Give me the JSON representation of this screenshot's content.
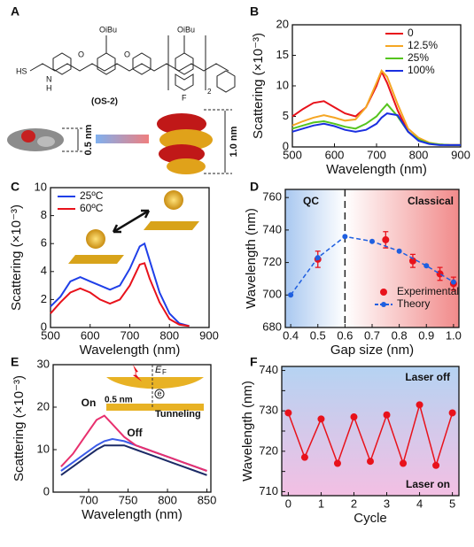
{
  "figure": {
    "panels": [
      "A",
      "B",
      "C",
      "D",
      "E",
      "F"
    ],
    "molecule": {
      "thiol": "HS",
      "nitrogen": "N",
      "hydrogen": "H",
      "oxygen": "O",
      "side_group": "OiBu",
      "name": "(OS-2)",
      "fluorine": "F",
      "repeat": "2",
      "short_height": "0.5 nm",
      "tall_height": "1.0 nm"
    },
    "inset_e": {
      "fermi": "E",
      "fermi_sub": "F",
      "electron": "e",
      "gap": "0.5 nm",
      "process": "Tunneling"
    }
  },
  "chart_data": [
    {
      "type": "line",
      "xlabel": "Wavelength (nm)",
      "ylabel": "Scattering (×10⁻³)",
      "x": [
        500,
        525,
        550,
        575,
        600,
        625,
        650,
        675,
        700,
        712,
        725,
        750,
        775,
        800,
        825,
        850,
        875,
        900
      ],
      "series": [
        {
          "name": "0",
          "color": "#e8121b",
          "values": [
            5,
            6.2,
            7.2,
            7.5,
            6.5,
            5.5,
            5,
            6.5,
            10,
            12.3,
            10.5,
            6,
            2.5,
            1.2,
            0.6,
            0.4,
            0.3,
            0.3
          ]
        },
        {
          "name": "12.5%",
          "color": "#f5a623",
          "values": [
            3.5,
            4.2,
            4.8,
            5.2,
            4.8,
            4.3,
            4.5,
            6.5,
            10.5,
            12.5,
            11.5,
            7,
            3,
            1.5,
            0.7,
            0.4,
            0.3,
            0.3
          ]
        },
        {
          "name": "25%",
          "color": "#55c41e",
          "values": [
            3,
            3.5,
            4,
            4.2,
            3.8,
            3.3,
            3,
            3.8,
            5,
            6,
            7,
            5,
            2.5,
            1.2,
            0.6,
            0.4,
            0.3,
            0.3
          ]
        },
        {
          "name": "100%",
          "color": "#1a2fe0",
          "values": [
            2.5,
            3,
            3.5,
            3.8,
            3.4,
            2.8,
            2.5,
            2.8,
            3.8,
            4.8,
            5.5,
            5.2,
            2.5,
            1,
            0.5,
            0.3,
            0.3,
            0.3
          ]
        }
      ],
      "xlim": [
        500,
        900
      ],
      "xticks": [
        500,
        600,
        700,
        800,
        900
      ],
      "ylim": [
        0,
        20
      ],
      "yticks": [
        0,
        5,
        10,
        15,
        20
      ],
      "legend": "upper right"
    },
    {
      "type": "line",
      "xlabel": "Wavelength (nm)",
      "ylabel": "Scattering (×10⁻³)",
      "x": [
        500,
        525,
        550,
        575,
        600,
        625,
        650,
        675,
        700,
        725,
        737,
        750,
        775,
        800,
        825,
        850
      ],
      "series": [
        {
          "name": "25ºC",
          "color": "#1f3fe8",
          "values": [
            1.5,
            2.2,
            3.3,
            3.6,
            3.3,
            3,
            2.7,
            3,
            4.2,
            5.8,
            6,
            4.8,
            2.5,
            1,
            0.3,
            0.1
          ]
        },
        {
          "name": "60ºC",
          "color": "#e8121b",
          "values": [
            1,
            1.8,
            2.5,
            2.8,
            2.5,
            2,
            1.7,
            2,
            3,
            4.5,
            4.6,
            3.5,
            1.8,
            0.6,
            0.2,
            0.1
          ]
        }
      ],
      "xlim": [
        500,
        900
      ],
      "xticks": [
        500,
        600,
        700,
        800,
        900
      ],
      "ylim": [
        0,
        10
      ],
      "yticks": [
        0,
        2,
        4,
        6,
        8,
        10
      ],
      "legend": "upper left"
    },
    {
      "type": "line",
      "xlabel": "Gap size (nm)",
      "ylabel": "Wavelength (nm)",
      "divider": 0.6,
      "annotations": [
        "QC",
        "Classical"
      ],
      "series": [
        {
          "name": "Experimental",
          "color": "#e8121b",
          "style": "markers-errors",
          "x": [
            0.5,
            0.75,
            0.85,
            0.95,
            1.0
          ],
          "values": [
            722,
            734,
            721,
            713,
            707
          ],
          "errors": [
            5,
            5,
            4,
            4,
            4
          ]
        },
        {
          "name": "Theory",
          "color": "#1f5fe0",
          "style": "dashed-markers",
          "x": [
            0.4,
            0.5,
            0.6,
            0.7,
            0.8,
            0.9,
            1.0
          ],
          "values": [
            700,
            723,
            736,
            733,
            727,
            718,
            708
          ]
        }
      ],
      "xlim": [
        0.38,
        1.02
      ],
      "xticks": [
        0.4,
        0.5,
        0.6,
        0.7,
        0.8,
        0.9,
        {
          "value": 1,
          "label": "1.0"
        }
      ],
      "ylim": [
        680,
        765
      ],
      "yticks": [
        680,
        700,
        720,
        740,
        760
      ],
      "legend": "lower right"
    },
    {
      "type": "line",
      "xlabel": "Wavelength (nm)",
      "ylabel": "Scattering (×10⁻³)",
      "annotations": [
        "On",
        "Off"
      ],
      "x": [
        665,
        680,
        695,
        710,
        720,
        730,
        745,
        760,
        775,
        790,
        805,
        820,
        835,
        850
      ],
      "series": [
        {
          "color": "#1b2a66",
          "values": [
            4,
            6,
            8,
            10,
            11,
            11,
            11,
            10,
            9,
            8,
            7,
            6,
            5,
            4
          ]
        },
        {
          "color": "#3b5be8",
          "values": [
            5,
            7,
            9,
            11,
            12,
            12.5,
            12,
            11,
            10,
            9,
            8,
            7,
            6,
            5
          ]
        },
        {
          "color": "#e8306e",
          "values": [
            6,
            9,
            13,
            17,
            18,
            16,
            13,
            11,
            10,
            9,
            8,
            7,
            6,
            5
          ]
        }
      ],
      "xlim": [
        655,
        855
      ],
      "xticks": [
        700,
        750,
        800,
        850
      ],
      "ylim": [
        0,
        30
      ],
      "yticks": [
        0,
        10,
        20,
        30
      ]
    },
    {
      "type": "line",
      "xlabel": "Cycle",
      "ylabel": "Wavelength (nm)",
      "annotations": [
        "Laser off",
        "Laser on"
      ],
      "x": [
        0,
        0.5,
        1,
        1.5,
        2,
        2.5,
        3,
        3.5,
        4,
        4.5,
        5
      ],
      "series": [
        {
          "color": "#e8121b",
          "style": "line-markers",
          "values": [
            729.5,
            718.5,
            728,
            717,
            728.5,
            717.5,
            729,
            717,
            731.5,
            716.5,
            729.5
          ]
        }
      ],
      "xlim": [
        -0.2,
        5.2
      ],
      "xticks": [
        0,
        1,
        2,
        3,
        4,
        5
      ],
      "ylim": [
        709,
        741
      ],
      "yticks": [
        710,
        715,
        720,
        725,
        730,
        735,
        740
      ]
    }
  ]
}
